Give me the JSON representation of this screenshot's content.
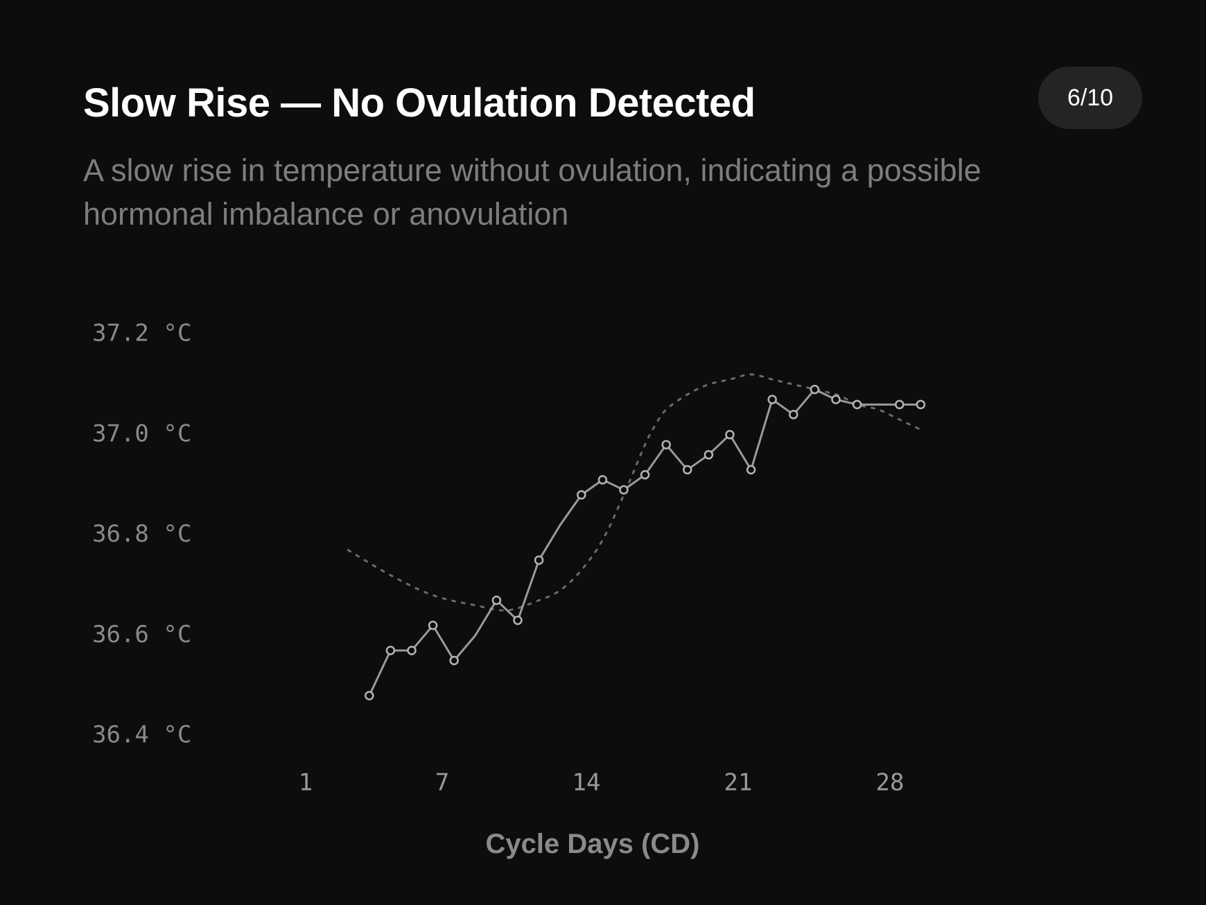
{
  "header": {
    "title": "Slow Rise — No Ovulation Detected",
    "subtitle": "A slow rise in temperature without ovulation, indicating a possible hormonal imbalance or anovulation",
    "page_indicator": "6/10"
  },
  "colors": {
    "background": "#0d0d0d",
    "data_line": "#9a9a9a",
    "trend_line": "#6a6a6a",
    "grid": "#2a2a2a",
    "badge_bg": "#242424"
  },
  "chart_data": {
    "type": "line",
    "xlabel": "Cycle Days (CD)",
    "ylabel": "",
    "x_ticks": [
      1,
      7,
      14,
      21,
      28
    ],
    "y_ticks": [
      37.2,
      37.0,
      36.8,
      36.6,
      36.4
    ],
    "y_tick_labels": [
      "37.2 °C",
      "37.0 °C",
      "36.8 °C",
      "36.6 °C",
      "36.4 °C"
    ],
    "ylim": [
      36.4,
      37.2
    ],
    "grid": true,
    "legend": "none",
    "series": [
      {
        "x": [
          4,
          5,
          6,
          7,
          8,
          9,
          10,
          11,
          12,
          13,
          14,
          15,
          16,
          17,
          18,
          19,
          20,
          21,
          22,
          23,
          24,
          25,
          26,
          27,
          28,
          29,
          30
        ],
        "values": [
          36.48,
          36.57,
          36.57,
          36.62,
          36.55,
          36.6,
          36.67,
          36.63,
          36.75,
          36.82,
          36.88,
          36.91,
          36.89,
          36.92,
          36.98,
          36.93,
          36.96,
          37.0,
          36.93,
          37.07,
          37.04,
          37.09,
          37.07,
          37.06,
          37.06,
          37.06,
          37.06
        ],
        "markers": [
          true,
          true,
          true,
          true,
          true,
          false,
          true,
          true,
          true,
          false,
          true,
          true,
          true,
          true,
          true,
          true,
          true,
          true,
          true,
          true,
          true,
          true,
          true,
          true,
          false,
          true,
          true
        ]
      },
      {
        "style": "dotted",
        "x": [
          3,
          5,
          7,
          9,
          10.5,
          12,
          13,
          14,
          15,
          16,
          17,
          17.5,
          18,
          19,
          20,
          21,
          22,
          23,
          24,
          26,
          27,
          28,
          29,
          30
        ],
        "values": [
          36.77,
          36.72,
          36.68,
          36.66,
          36.65,
          36.67,
          36.69,
          36.73,
          36.79,
          36.88,
          36.98,
          37.02,
          37.05,
          37.08,
          37.1,
          37.11,
          37.12,
          37.11,
          37.1,
          37.08,
          37.06,
          37.05,
          37.03,
          37.01
        ]
      }
    ]
  }
}
